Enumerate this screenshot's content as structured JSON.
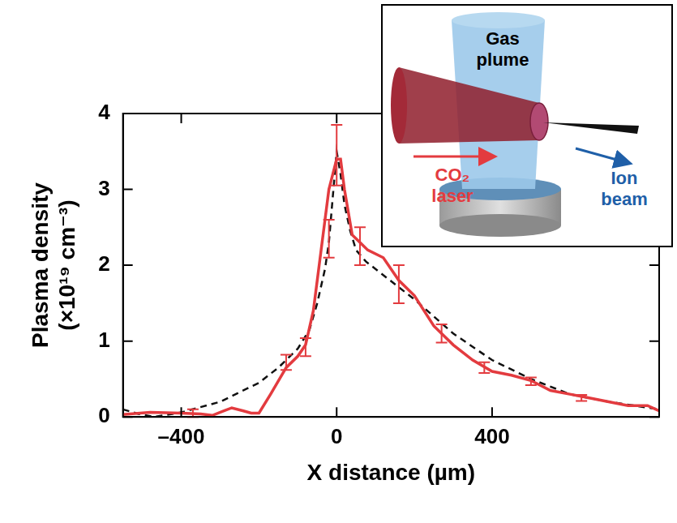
{
  "chart_data": {
    "type": "line",
    "x_label": "X distance (µm)",
    "y_label": [
      "Plasma density",
      "(×10¹⁹ cm⁻³)"
    ],
    "xlim": [
      -550,
      830
    ],
    "xticks": [
      {
        "value": -400,
        "label": "–400"
      },
      0,
      400
    ],
    "ylim": [
      0,
      4
    ],
    "yticks": [
      0,
      1,
      2,
      3,
      4
    ],
    "grid": false,
    "series": [
      {
        "color": "#e33b3f",
        "line_style": "solid",
        "x": [
          -553,
          -480,
          -400,
          -350,
          -320,
          -290,
          -270,
          -240,
          -220,
          -200,
          -170,
          -130,
          -100,
          -80,
          -60,
          -40,
          -20,
          0,
          10,
          20,
          40,
          60,
          80,
          120,
          160,
          200,
          250,
          300,
          350,
          400,
          450,
          500,
          550,
          600,
          650,
          700,
          750,
          800,
          830
        ],
        "values": [
          0.03,
          0.06,
          0.05,
          0.04,
          0.02,
          0.08,
          0.12,
          0.08,
          0.05,
          0.05,
          0.3,
          0.65,
          0.8,
          0.95,
          1.4,
          2.2,
          3.0,
          3.4,
          3.4,
          3.0,
          2.4,
          2.3,
          2.2,
          2.1,
          1.8,
          1.6,
          1.2,
          0.95,
          0.75,
          0.6,
          0.55,
          0.48,
          0.35,
          0.3,
          0.25,
          0.2,
          0.15,
          0.15,
          0.08
        ],
        "error_bars": {
          "x": [
            -370,
            -130,
            -80,
            -20,
            0,
            60,
            160,
            270,
            380,
            500,
            630
          ],
          "values": [
            0.05,
            0.72,
            0.92,
            2.35,
            3.45,
            2.25,
            1.75,
            1.1,
            0.65,
            0.47,
            0.25
          ],
          "errors": [
            0.05,
            0.1,
            0.12,
            0.25,
            0.4,
            0.25,
            0.25,
            0.12,
            0.07,
            0.05,
            0.04
          ]
        }
      },
      {
        "color": "#111111",
        "line_style": "dashed",
        "x": [
          -550,
          -510,
          -470,
          -400,
          -300,
          -200,
          -150,
          -100,
          -70,
          -50,
          -30,
          -20,
          -10,
          0,
          10,
          20,
          35,
          50,
          75,
          100,
          150,
          200,
          300,
          400,
          500,
          600,
          700,
          830
        ],
        "values": [
          0.1,
          0.04,
          0.0,
          0.06,
          0.2,
          0.45,
          0.65,
          0.9,
          1.15,
          1.5,
          1.95,
          2.3,
          2.9,
          3.5,
          3.2,
          2.8,
          2.45,
          2.2,
          2.05,
          1.95,
          1.75,
          1.55,
          1.1,
          0.75,
          0.5,
          0.3,
          0.2,
          0.1
        ]
      }
    ],
    "inset": {
      "gas_label": "Gas plume",
      "laser_label": "CO₂ laser",
      "ion_label": "Ion beam"
    }
  }
}
